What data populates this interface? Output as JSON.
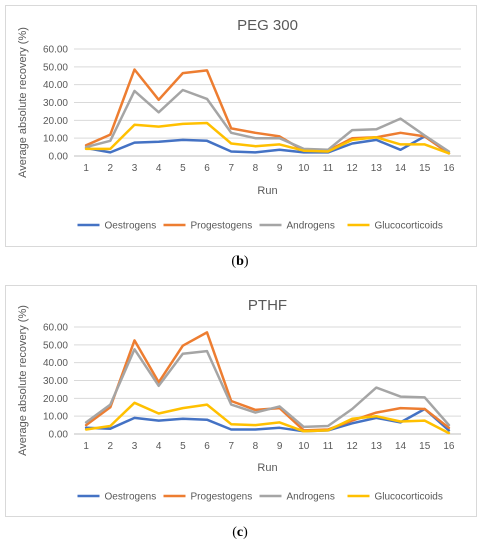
{
  "chart_data": [
    {
      "type": "line",
      "panel_label": "b",
      "title": "PEG 300",
      "xlabel": "Run",
      "ylabel": "Average absolute recovery (%)",
      "ylim": [
        0,
        60
      ],
      "ytick_step": 10,
      "ytick_labels": [
        "0.00",
        "10.00",
        "20.00",
        "30.00",
        "40.00",
        "50.00",
        "60.00"
      ],
      "categories": [
        "1",
        "2",
        "3",
        "4",
        "5",
        "6",
        "7",
        "8",
        "9",
        "10",
        "11",
        "12",
        "13",
        "14",
        "15",
        "16"
      ],
      "grid": true,
      "legend_position": "bottom",
      "series": [
        {
          "name": "Oestrogens",
          "color": "#4472C4",
          "values": [
            4.5,
            2.0,
            7.5,
            8.0,
            9.0,
            8.5,
            2.5,
            2.0,
            3.5,
            2.0,
            2.0,
            7.0,
            9.0,
            3.5,
            11.0,
            1.5
          ]
        },
        {
          "name": "Progestogens",
          "color": "#ED7D31",
          "values": [
            6.0,
            12.0,
            48.5,
            31.5,
            46.5,
            48.0,
            15.5,
            13.0,
            11.0,
            3.0,
            3.0,
            10.0,
            10.5,
            13.0,
            11.0,
            1.5
          ]
        },
        {
          "name": "Androgens",
          "color": "#A5A5A5",
          "values": [
            5.0,
            8.5,
            36.5,
            24.5,
            37.0,
            32.0,
            13.0,
            10.0,
            10.0,
            4.0,
            3.5,
            14.5,
            15.0,
            21.0,
            11.5,
            2.5
          ]
        },
        {
          "name": "Glucocorticoids",
          "color": "#FFC000",
          "values": [
            4.0,
            4.0,
            17.5,
            16.5,
            18.0,
            18.5,
            7.0,
            5.5,
            6.5,
            3.0,
            2.5,
            9.0,
            10.5,
            6.5,
            6.5,
            1.5
          ]
        }
      ]
    },
    {
      "type": "line",
      "panel_label": "c",
      "title": "PTHF",
      "xlabel": "Run",
      "ylabel": "Average absolute recovery (%)",
      "ylim": [
        0,
        60
      ],
      "ytick_step": 10,
      "ytick_labels": [
        "0.00",
        "10.00",
        "20.00",
        "30.00",
        "40.00",
        "50.00",
        "60.00"
      ],
      "categories": [
        "1",
        "2",
        "3",
        "4",
        "5",
        "6",
        "7",
        "8",
        "9",
        "10",
        "11",
        "12",
        "13",
        "14",
        "15",
        "16"
      ],
      "grid": true,
      "legend_position": "bottom",
      "series": [
        {
          "name": "Oestrogens",
          "color": "#4472C4",
          "values": [
            3.5,
            3.0,
            9.0,
            7.5,
            8.5,
            8.0,
            2.5,
            2.5,
            3.5,
            1.5,
            2.0,
            6.0,
            9.0,
            6.5,
            14.0,
            2.0
          ]
        },
        {
          "name": "Progestogens",
          "color": "#ED7D31",
          "values": [
            5.0,
            15.0,
            52.5,
            29.0,
            49.5,
            57.0,
            18.5,
            13.5,
            14.5,
            2.0,
            2.5,
            7.5,
            12.0,
            14.5,
            14.0,
            3.5
          ]
        },
        {
          "name": "Androgens",
          "color": "#A5A5A5",
          "values": [
            6.5,
            16.5,
            47.5,
            27.0,
            45.0,
            46.5,
            16.5,
            12.0,
            15.5,
            4.0,
            4.5,
            14.0,
            26.0,
            21.0,
            20.5,
            5.0
          ]
        },
        {
          "name": "Glucocorticoids",
          "color": "#FFC000",
          "values": [
            2.5,
            4.5,
            17.5,
            11.5,
            14.5,
            16.5,
            5.5,
            5.0,
            6.5,
            1.5,
            2.0,
            8.5,
            10.0,
            7.0,
            7.5,
            0.5
          ]
        }
      ]
    }
  ]
}
